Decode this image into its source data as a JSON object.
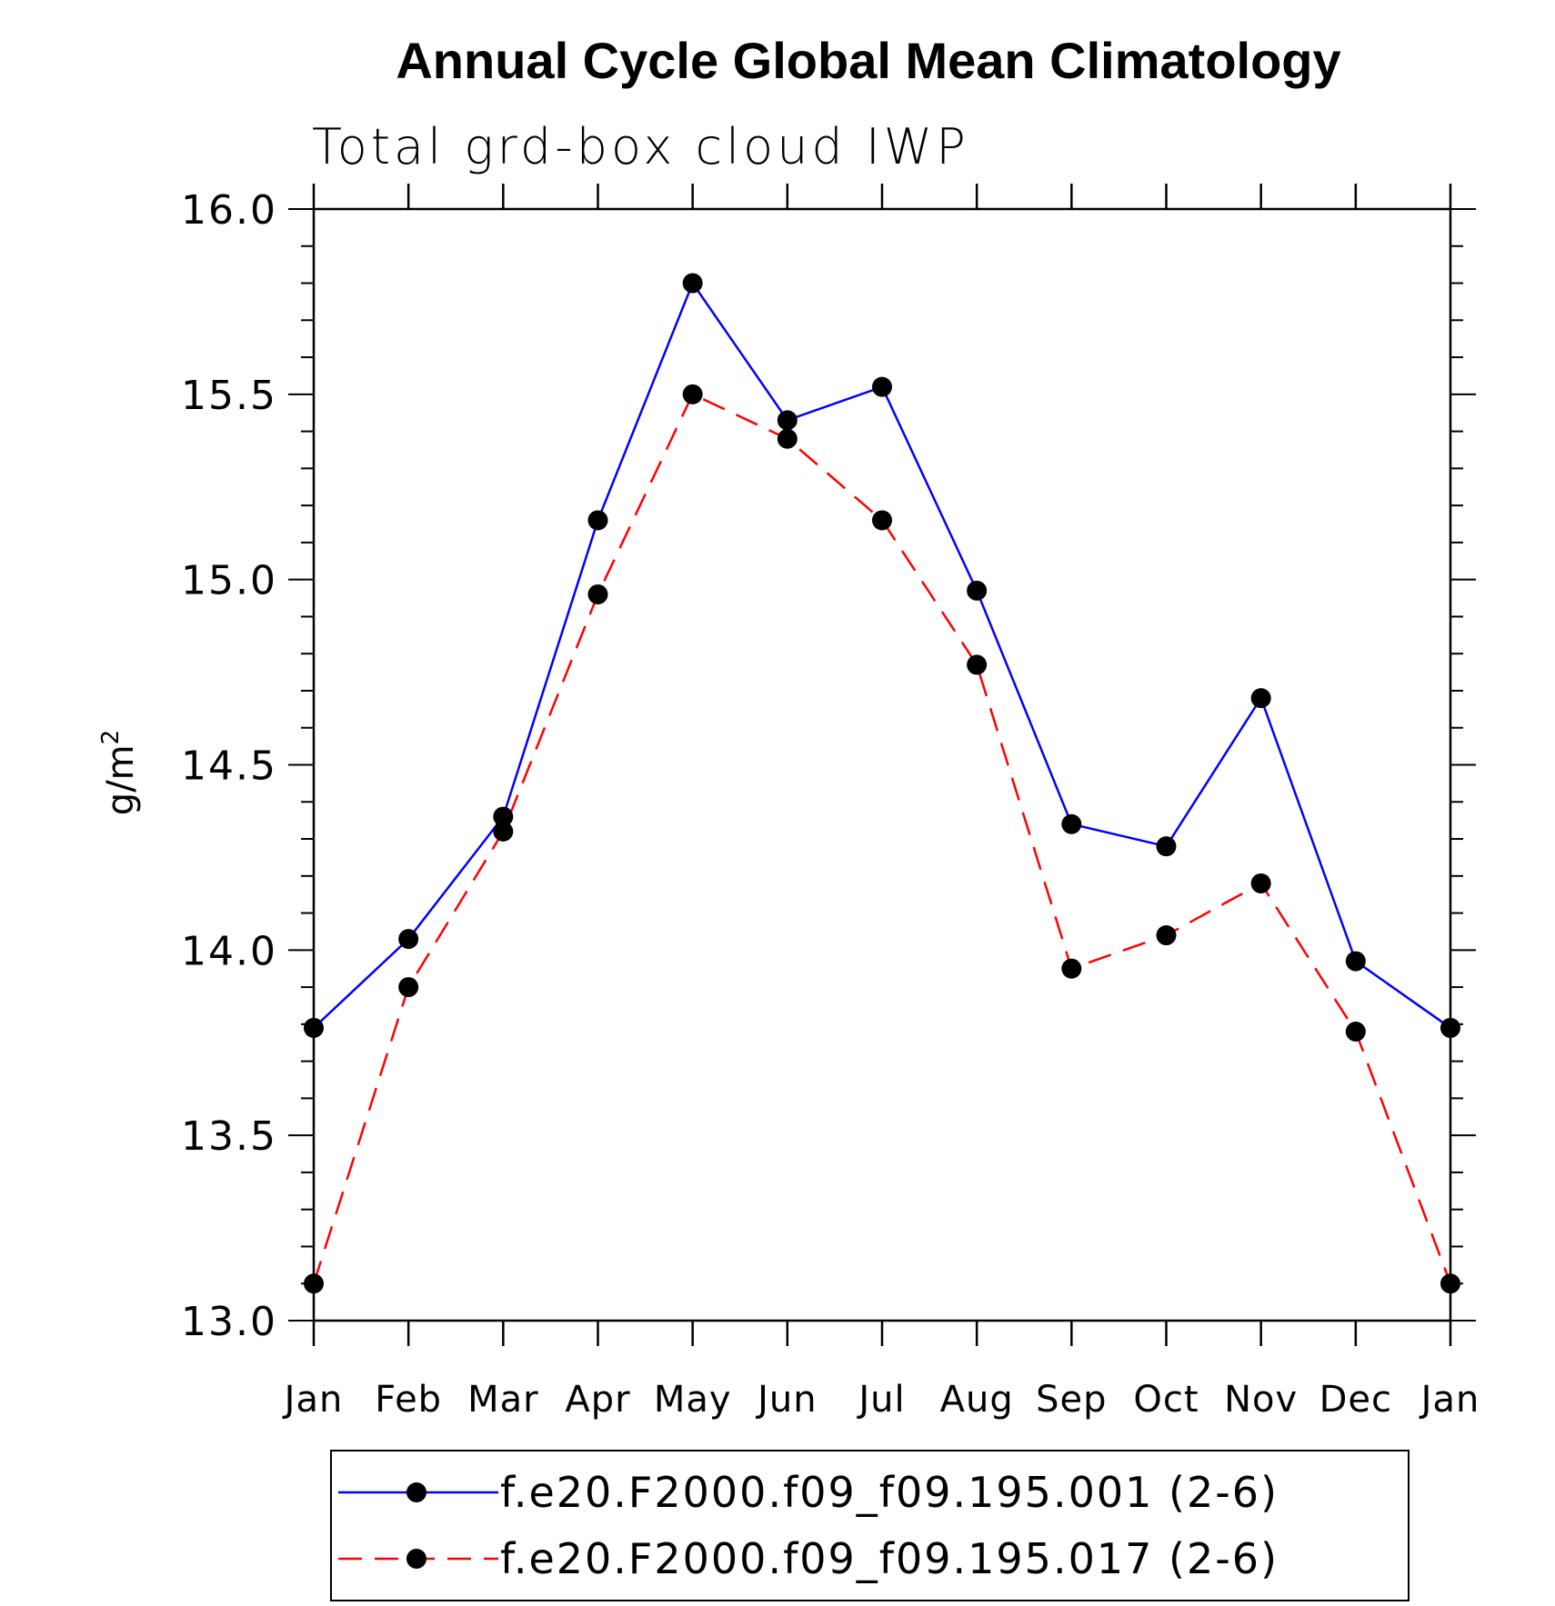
{
  "chart_data": {
    "type": "line",
    "title": "Annual Cycle Global Mean Climatology",
    "subtitle": "Total grd-box cloud IWP",
    "ylabel": "g/m",
    "ylabel_superscript": "2",
    "ylim": [
      13.0,
      16.0
    ],
    "yticks": [
      "13.0",
      "13.5",
      "14.0",
      "14.5",
      "15.0",
      "15.5",
      "16.0"
    ],
    "categories": [
      "Jan",
      "Feb",
      "Mar",
      "Apr",
      "May",
      "Jun",
      "Jul",
      "Aug",
      "Sep",
      "Oct",
      "Nov",
      "Dec",
      "Jan"
    ],
    "grid": false,
    "legend_position": "bottom",
    "series": [
      {
        "name": "f.e20.F2000.f09_f09.195.001 (2-6)",
        "color": "#0000ff",
        "line_style": "solid",
        "marker": "filled-circle",
        "values": [
          13.79,
          14.03,
          14.36,
          15.16,
          15.8,
          15.43,
          15.52,
          14.97,
          14.34,
          14.28,
          14.68,
          13.97,
          13.79
        ]
      },
      {
        "name": "f.e20.F2000.f09_f09.195.017 (2-6)",
        "color": "#ff0000",
        "line_style": "dashed",
        "marker": "filled-circle",
        "values": [
          13.1,
          13.9,
          14.32,
          14.96,
          15.5,
          15.38,
          15.16,
          14.77,
          13.95,
          14.04,
          14.18,
          13.78,
          13.1
        ]
      }
    ]
  }
}
